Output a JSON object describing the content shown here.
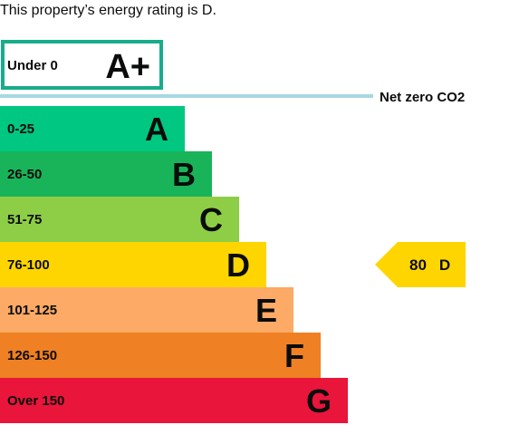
{
  "caption": "This property’s energy rating is D.",
  "chart_data": {
    "type": "bar",
    "title": "",
    "categories": [
      "A+",
      "A",
      "B",
      "C",
      "D",
      "E",
      "F",
      "G"
    ],
    "ranges": [
      "Under 0",
      "0-25",
      "26-50",
      "51-75",
      "76-100",
      "101-125",
      "126-150",
      "Over 150"
    ],
    "colors": [
      "#ffffff",
      "#00c781",
      "#19b459",
      "#8dce46",
      "#ffd500",
      "#fcaa65",
      "#ef8023",
      "#e9153b"
    ],
    "highlight_border_color": "#19ac8a",
    "net_zero": {
      "label": "Net zero CO2",
      "color": "#a8d8e2"
    },
    "current_rating": {
      "value": 80,
      "letter": "D",
      "color": "#ffd500"
    }
  }
}
